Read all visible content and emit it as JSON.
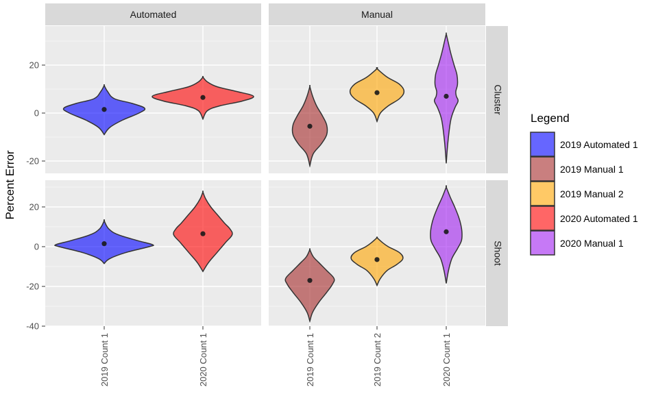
{
  "chart_data": {
    "type": "violin",
    "ylabel": "Percent Error",
    "xlabel": "",
    "ylim": [
      -40,
      33
    ],
    "yticks": [
      -40,
      -20,
      0,
      20
    ],
    "facet_cols": [
      "Automated",
      "Manual"
    ],
    "facet_rows": [
      "Cluster",
      "Shoot"
    ],
    "legend": {
      "title": "Legend",
      "placement": "right",
      "items": [
        {
          "label": "2019 Automated 1",
          "color": "#0000FF"
        },
        {
          "label": "2019 Manual 1",
          "color": "#A52A2A"
        },
        {
          "label": "2019 Manual 2",
          "color": "#FFA500"
        },
        {
          "label": "2020 Automated 1",
          "color": "#FF0000"
        },
        {
          "label": "2020 Manual 1",
          "color": "#A020F0"
        }
      ]
    },
    "panels": [
      {
        "col": "Automated",
        "row": "Cluster",
        "categories": [
          "2019 Count 1",
          "2020 Count 1"
        ],
        "violins": [
          {
            "x": "2019 Count 1",
            "group": "2019 Automated 1",
            "mean": 1.5,
            "min": -9,
            "max": 11.5,
            "width_profile": [
              [
                -9,
                0
              ],
              [
                -6,
                0.1
              ],
              [
                -3,
                0.32
              ],
              [
                0,
                0.62
              ],
              [
                2,
                0.72
              ],
              [
                4,
                0.5
              ],
              [
                6,
                0.18
              ],
              [
                9,
                0.06
              ],
              [
                11.5,
                0
              ]
            ]
          },
          {
            "x": "2020 Count 1",
            "group": "2020 Automated 1",
            "mean": 6.5,
            "min": -2.5,
            "max": 15,
            "width_profile": [
              [
                -2.5,
                0
              ],
              [
                1,
                0.08
              ],
              [
                3,
                0.3
              ],
              [
                5,
                0.7
              ],
              [
                7,
                0.9
              ],
              [
                9,
                0.6
              ],
              [
                11,
                0.25
              ],
              [
                13,
                0.08
              ],
              [
                15,
                0
              ]
            ]
          }
        ]
      },
      {
        "col": "Manual",
        "row": "Cluster",
        "categories": [
          "2019 Count 1",
          "2019 Count 2",
          "2020 Count 1"
        ],
        "violins": [
          {
            "x": "2019 Count 1",
            "group": "2019 Manual 1",
            "mean": -5.5,
            "min": -22,
            "max": 11,
            "width_profile": [
              [
                -22,
                0
              ],
              [
                -17,
                0.06
              ],
              [
                -13,
                0.2
              ],
              [
                -9,
                0.3
              ],
              [
                -5,
                0.3
              ],
              [
                -1,
                0.22
              ],
              [
                3,
                0.12
              ],
              [
                7,
                0.05
              ],
              [
                11,
                0
              ]
            ]
          },
          {
            "x": "2019 Count 2",
            "group": "2019 Manual 2",
            "mean": 8.5,
            "min": -3.5,
            "max": 18.5,
            "width_profile": [
              [
                -3.5,
                0
              ],
              [
                0,
                0.06
              ],
              [
                3,
                0.2
              ],
              [
                6,
                0.4
              ],
              [
                9,
                0.48
              ],
              [
                12,
                0.4
              ],
              [
                15,
                0.18
              ],
              [
                18.5,
                0
              ]
            ]
          },
          {
            "x": "2020 Count 1",
            "group": "2020 Manual 1",
            "mean": 7,
            "min": -21,
            "max": 33,
            "width_profile": [
              [
                -21,
                0
              ],
              [
                -12,
                0.03
              ],
              [
                -3,
                0.08
              ],
              [
                2,
                0.15
              ],
              [
                5,
                0.21
              ],
              [
                7,
                0.18
              ],
              [
                9,
                0.17
              ],
              [
                12,
                0.2
              ],
              [
                16,
                0.19
              ],
              [
                20,
                0.14
              ],
              [
                25,
                0.08
              ],
              [
                30,
                0.03
              ],
              [
                33,
                0
              ]
            ]
          }
        ]
      },
      {
        "col": "Automated",
        "row": "Shoot",
        "categories": [
          "2019 Count 1",
          "2020 Count 1"
        ],
        "violins": [
          {
            "x": "2019 Count 1",
            "group": "2019 Automated 1",
            "mean": 1.5,
            "min": -8.5,
            "max": 13,
            "width_profile": [
              [
                -8.5,
                0
              ],
              [
                -6,
                0.1
              ],
              [
                -3,
                0.38
              ],
              [
                0,
                0.8
              ],
              [
                1,
                0.86
              ],
              [
                3,
                0.6
              ],
              [
                6,
                0.25
              ],
              [
                9,
                0.08
              ],
              [
                13,
                0
              ]
            ]
          },
          {
            "x": "2020 Count 1",
            "group": "2020 Automated 1",
            "mean": 6.5,
            "min": -12.5,
            "max": 27.5,
            "width_profile": [
              [
                -12.5,
                0
              ],
              [
                -8,
                0.1
              ],
              [
                -3,
                0.25
              ],
              [
                2,
                0.4
              ],
              [
                6,
                0.52
              ],
              [
                9,
                0.48
              ],
              [
                12,
                0.38
              ],
              [
                16,
                0.26
              ],
              [
                20,
                0.14
              ],
              [
                24,
                0.05
              ],
              [
                27.5,
                0
              ]
            ]
          }
        ]
      },
      {
        "col": "Manual",
        "row": "Shoot",
        "categories": [
          "2019 Count 1",
          "2019 Count 2",
          "2020 Count 1"
        ],
        "violins": [
          {
            "x": "2019 Count 1",
            "group": "2019 Manual 1",
            "mean": -17,
            "min": -37.5,
            "max": -1.5,
            "width_profile": [
              [
                -37.5,
                0
              ],
              [
                -33,
                0.05
              ],
              [
                -28,
                0.16
              ],
              [
                -23,
                0.3
              ],
              [
                -19,
                0.4
              ],
              [
                -16,
                0.43
              ],
              [
                -12,
                0.3
              ],
              [
                -8,
                0.16
              ],
              [
                -5,
                0.06
              ],
              [
                -1.5,
                0
              ]
            ]
          },
          {
            "x": "2019 Count 2",
            "group": "2019 Manual 2",
            "mean": -6.5,
            "min": -19.5,
            "max": 4.5,
            "width_profile": [
              [
                -19.5,
                0
              ],
              [
                -16,
                0.06
              ],
              [
                -12,
                0.18
              ],
              [
                -9,
                0.35
              ],
              [
                -6,
                0.46
              ],
              [
                -3,
                0.4
              ],
              [
                0,
                0.2
              ],
              [
                2,
                0.1
              ],
              [
                4.5,
                0
              ]
            ]
          },
          {
            "x": "2020 Count 1",
            "group": "2020 Manual 1",
            "mean": 7.5,
            "min": -18.5,
            "max": 30,
            "width_profile": [
              [
                -18.5,
                0
              ],
              [
                -12,
                0.04
              ],
              [
                -6,
                0.1
              ],
              [
                -1,
                0.2
              ],
              [
                3,
                0.27
              ],
              [
                7,
                0.28
              ],
              [
                11,
                0.26
              ],
              [
                15,
                0.22
              ],
              [
                20,
                0.15
              ],
              [
                25,
                0.07
              ],
              [
                30,
                0
              ]
            ]
          }
        ]
      }
    ]
  }
}
